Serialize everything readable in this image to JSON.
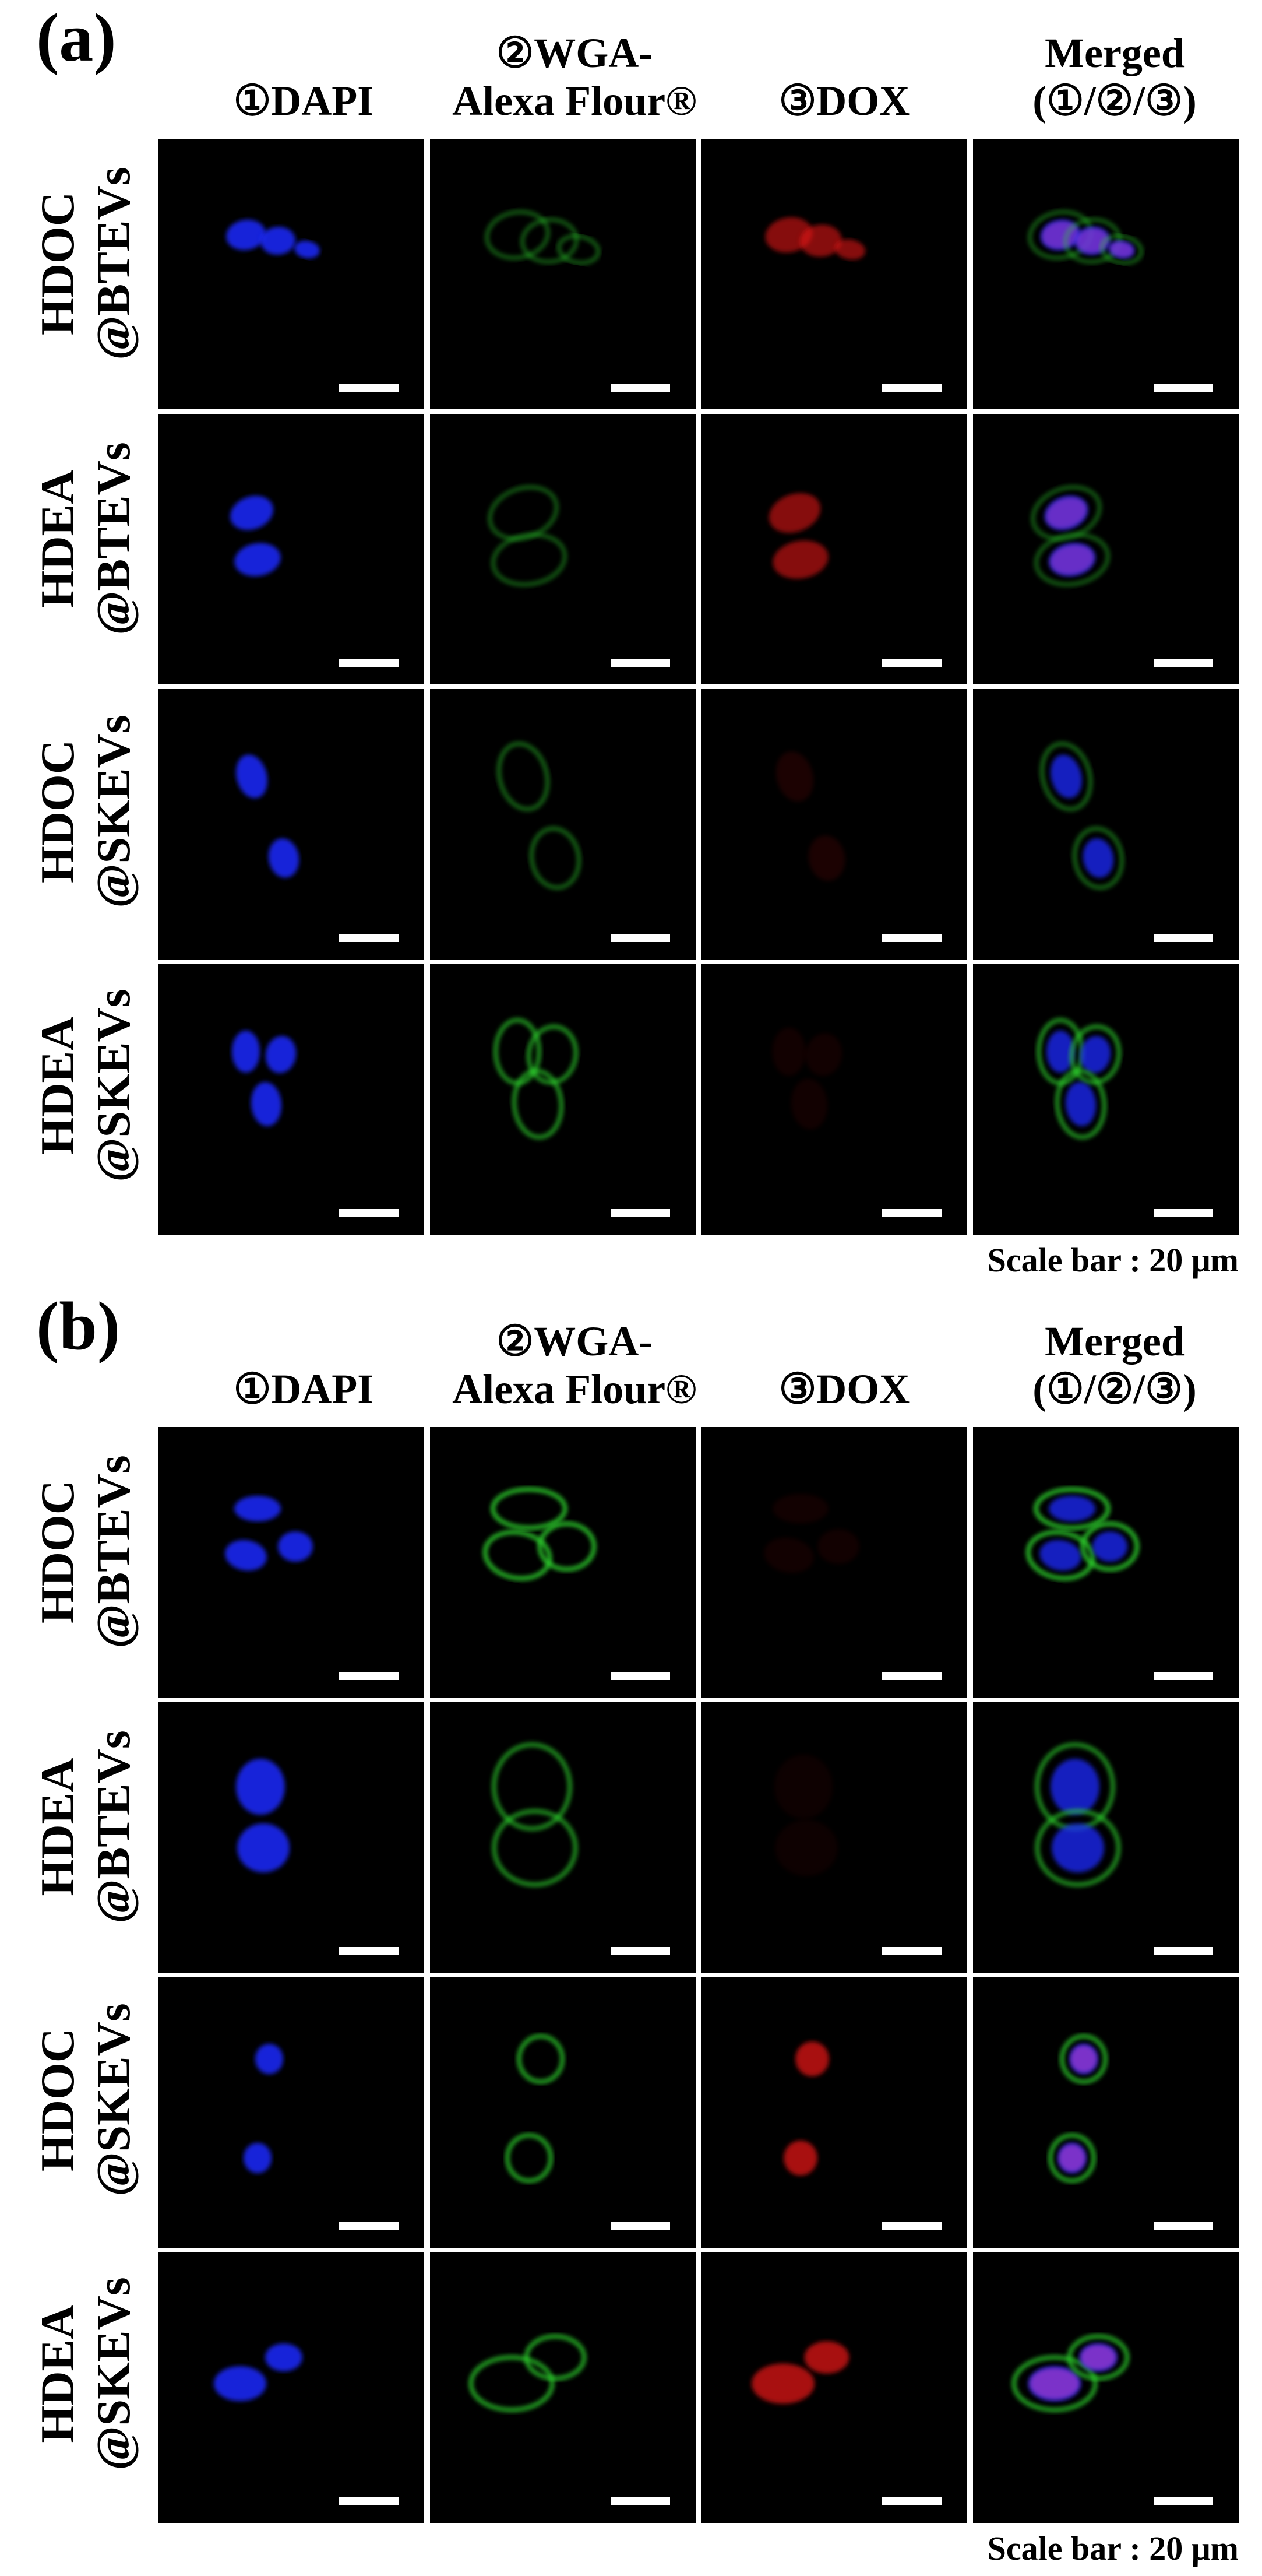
{
  "figure": {
    "columns": [
      "①DAPI",
      "②WGA-\nAlexa Flour®",
      "③DOX",
      "Merged\n(①/②/③)"
    ],
    "scale_text": "Scale bar : 20 μm",
    "panels": [
      {
        "label": "(a)",
        "rows": [
          {
            "label": "HDOC\n@BTEVs",
            "dox_level": 0.6,
            "wga_level": 0.45
          },
          {
            "label": "HDEA\n@BTEVs",
            "dox_level": 0.6,
            "wga_level": 0.45
          },
          {
            "label": "HDOC\n@SKEVs",
            "dox_level": 0.12,
            "wga_level": 0.5
          },
          {
            "label": "HDEA\n@SKEVs",
            "dox_level": 0.08,
            "wga_level": 0.75
          }
        ]
      },
      {
        "label": "(b)",
        "rows": [
          {
            "label": "HDOC\n@BTEVs",
            "dox_level": 0.08,
            "wga_level": 0.95
          },
          {
            "label": "HDEA\n@BTEVs",
            "dox_level": 0.06,
            "wga_level": 0.75
          },
          {
            "label": "HDOC\n@SKEVs",
            "dox_level": 0.75,
            "wga_level": 0.85
          },
          {
            "label": "HDEA\n@SKEVs",
            "dox_level": 0.75,
            "wga_level": 0.85
          }
        ]
      }
    ],
    "channel_colors": {
      "dapi": "#1f2cff",
      "wga": "#2fd22f",
      "dox": "#e01818",
      "merged_overlap": "#c040d0",
      "background": "#000000",
      "scale_bar": "#ffffff"
    }
  }
}
